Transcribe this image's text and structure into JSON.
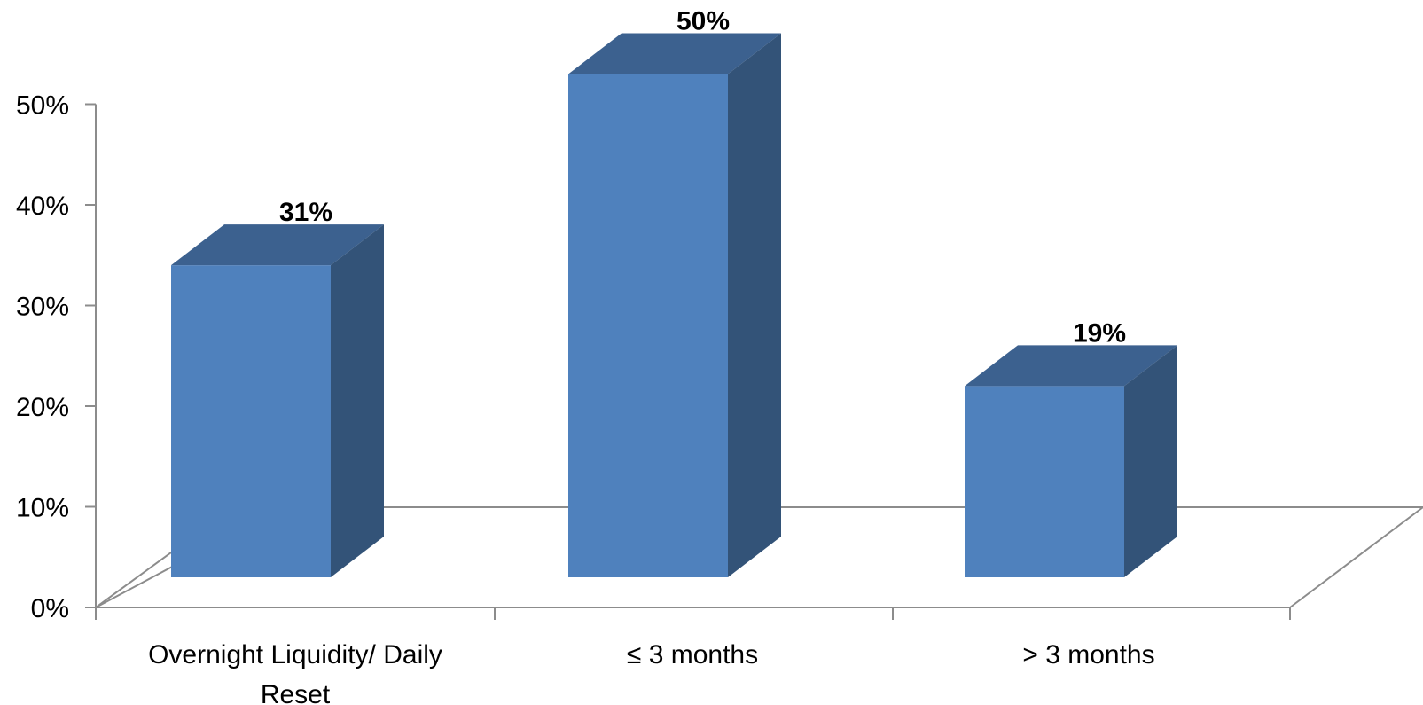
{
  "chart_data": {
    "type": "bar",
    "categories": [
      "Overnight Liquidity/ Daily Reset",
      "≤ 3 months",
      "> 3 months"
    ],
    "category_lines": [
      [
        "Overnight Liquidity/ Daily",
        "Reset"
      ],
      [
        "≤ 3 months"
      ],
      [
        "> 3 months"
      ]
    ],
    "values": [
      31,
      50,
      19
    ],
    "data_labels": [
      "31%",
      "50%",
      "19%"
    ],
    "ylim": [
      0,
      50
    ],
    "yticks": [
      0,
      10,
      20,
      30,
      40,
      50
    ],
    "ytick_labels": [
      "0%",
      "10%",
      "20%",
      "30%",
      "40%",
      "50%"
    ],
    "style": "3d-column",
    "title": "",
    "xlabel": "",
    "ylabel": "",
    "legend": "none",
    "grid": false,
    "colors": {
      "bar_front": "#4f81bd",
      "bar_top": "#3c618f",
      "bar_side": "#335378",
      "axis": "#8c8c8c"
    }
  }
}
